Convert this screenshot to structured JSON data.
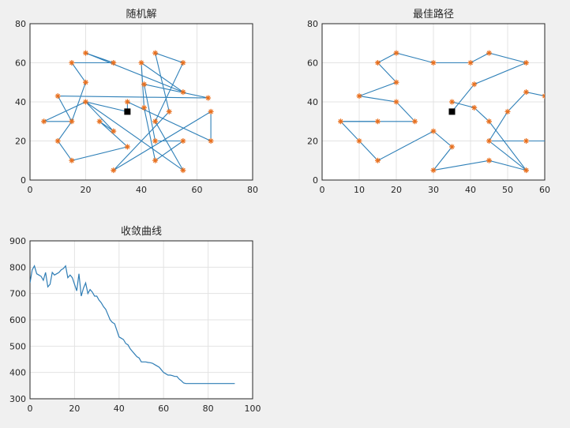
{
  "window": {
    "background": "#f0f0f0"
  },
  "colors": {
    "route": "#2f80b8",
    "city": "#e8701f",
    "depot": "#000000",
    "convergence": "#2f7db5",
    "grid": "#e3e3e3"
  },
  "chart_data": [
    {
      "type": "line",
      "title": "随机解",
      "xlim": [
        0,
        80
      ],
      "ylim": [
        0,
        80
      ],
      "xticks": [
        "0",
        "20",
        "40",
        "60",
        "80"
      ],
      "yticks": [
        "0",
        "20",
        "40",
        "60",
        "80"
      ],
      "grid": true,
      "depot": [
        35,
        35
      ],
      "cities": [
        [
          20,
          65
        ],
        [
          30,
          60
        ],
        [
          40,
          60
        ],
        [
          45,
          65
        ],
        [
          55,
          60
        ],
        [
          15,
          60
        ],
        [
          20,
          50
        ],
        [
          41,
          49
        ],
        [
          10,
          43
        ],
        [
          20,
          40
        ],
        [
          15,
          30
        ],
        [
          5,
          30
        ],
        [
          25,
          30
        ],
        [
          30,
          25
        ],
        [
          10,
          20
        ],
        [
          15,
          10
        ],
        [
          35,
          17
        ],
        [
          30,
          5
        ],
        [
          45,
          10
        ],
        [
          55,
          5
        ],
        [
          55,
          20
        ],
        [
          65,
          20
        ],
        [
          45,
          20
        ],
        [
          41,
          37
        ],
        [
          50,
          35
        ],
        [
          45,
          30
        ],
        [
          35,
          40
        ],
        [
          55,
          45
        ],
        [
          64,
          42
        ],
        [
          65,
          35
        ]
      ],
      "route": [
        [
          35,
          35
        ],
        [
          20,
          40
        ],
        [
          5,
          30
        ],
        [
          15,
          30
        ],
        [
          20,
          50
        ],
        [
          15,
          60
        ],
        [
          30,
          60
        ],
        [
          20,
          65
        ],
        [
          55,
          45
        ],
        [
          40,
          60
        ],
        [
          41,
          37
        ],
        [
          45,
          10
        ],
        [
          55,
          20
        ],
        [
          45,
          20
        ],
        [
          41,
          49
        ],
        [
          64,
          42
        ],
        [
          10,
          43
        ],
        [
          15,
          30
        ],
        [
          10,
          20
        ],
        [
          15,
          10
        ],
        [
          35,
          17
        ],
        [
          25,
          30
        ],
        [
          30,
          25
        ],
        [
          20,
          40
        ],
        [
          55,
          5
        ],
        [
          45,
          30
        ],
        [
          55,
          60
        ],
        [
          45,
          65
        ],
        [
          50,
          35
        ],
        [
          30,
          5
        ],
        [
          65,
          35
        ],
        [
          65,
          20
        ],
        [
          35,
          40
        ],
        [
          35,
          35
        ]
      ]
    },
    {
      "type": "line",
      "title": "最佳路径",
      "xlim": [
        0,
        60
      ],
      "ylim": [
        0,
        80
      ],
      "xticks": [
        "0",
        "10",
        "20",
        "30",
        "40",
        "50",
        "60"
      ],
      "yticks": [
        "0",
        "20",
        "40",
        "60",
        "80"
      ],
      "grid": true,
      "depot": [
        35,
        35
      ],
      "cities": [
        [
          15,
          60
        ],
        [
          20,
          65
        ],
        [
          30,
          60
        ],
        [
          40,
          60
        ],
        [
          45,
          65
        ],
        [
          55,
          60
        ],
        [
          20,
          50
        ],
        [
          41,
          49
        ],
        [
          10,
          43
        ],
        [
          20,
          40
        ],
        [
          5,
          30
        ],
        [
          15,
          30
        ],
        [
          25,
          30
        ],
        [
          10,
          20
        ],
        [
          15,
          10
        ],
        [
          30,
          25
        ],
        [
          35,
          17
        ],
        [
          30,
          5
        ],
        [
          45,
          10
        ],
        [
          55,
          5
        ],
        [
          55,
          20
        ],
        [
          45,
          20
        ],
        [
          45,
          30
        ],
        [
          41,
          37
        ],
        [
          35,
          40
        ],
        [
          50,
          35
        ],
        [
          55,
          45
        ],
        [
          60,
          43
        ]
      ],
      "route": [
        [
          35,
          35
        ],
        [
          41,
          49
        ],
        [
          55,
          60
        ],
        [
          45,
          65
        ],
        [
          40,
          60
        ],
        [
          30,
          60
        ],
        [
          20,
          65
        ],
        [
          15,
          60
        ],
        [
          20,
          50
        ],
        [
          10,
          43
        ],
        [
          20,
          40
        ],
        [
          25,
          30
        ],
        [
          5,
          30
        ],
        [
          10,
          20
        ],
        [
          15,
          10
        ],
        [
          30,
          25
        ],
        [
          35,
          17
        ],
        [
          30,
          5
        ],
        [
          45,
          10
        ],
        [
          55,
          5
        ],
        [
          45,
          30
        ],
        [
          41,
          37
        ],
        [
          35,
          40
        ]
      ],
      "route2": [
        [
          55,
          5
        ],
        [
          45,
          20
        ],
        [
          50,
          35
        ],
        [
          55,
          45
        ],
        [
          60,
          43
        ]
      ],
      "route3": [
        [
          45,
          20
        ],
        [
          55,
          20
        ],
        [
          60,
          20
        ]
      ],
      "route4": [
        [
          5,
          30
        ],
        [
          15,
          30
        ]
      ]
    },
    {
      "type": "line",
      "title": "收敛曲线",
      "xlim": [
        0,
        100
      ],
      "ylim": [
        300,
        900
      ],
      "xticks": [
        "0",
        "20",
        "40",
        "60",
        "80",
        "100"
      ],
      "yticks": [
        "300",
        "400",
        "500",
        "600",
        "700",
        "800",
        "900"
      ],
      "grid": true,
      "series": [
        {
          "x": [
            0,
            1,
            2,
            3,
            4,
            5,
            6,
            7,
            8,
            9,
            10,
            11,
            12,
            13,
            14,
            15,
            16,
            17,
            18,
            19,
            20,
            21,
            22,
            23,
            24,
            25,
            26,
            27,
            28,
            29,
            30,
            31,
            32,
            33,
            34,
            35,
            36,
            37,
            38,
            39,
            40,
            41,
            42,
            43,
            44,
            45,
            46,
            47,
            48,
            49,
            50,
            51,
            52,
            53,
            54,
            55,
            56,
            57,
            58,
            59,
            60,
            61,
            62,
            63,
            64,
            65,
            66,
            67,
            68,
            69,
            70,
            71,
            72,
            73,
            74,
            75,
            76,
            77,
            78,
            79,
            80,
            81,
            82,
            83,
            84,
            85,
            86,
            87,
            88,
            89,
            90,
            91,
            92
          ],
          "y": [
            740,
            790,
            805,
            775,
            770,
            765,
            750,
            780,
            725,
            735,
            780,
            770,
            775,
            780,
            790,
            795,
            805,
            760,
            770,
            760,
            735,
            710,
            775,
            690,
            720,
            740,
            700,
            715,
            705,
            690,
            690,
            675,
            665,
            650,
            640,
            620,
            600,
            590,
            585,
            560,
            535,
            530,
            525,
            510,
            505,
            490,
            480,
            470,
            460,
            455,
            440,
            440,
            440,
            438,
            437,
            435,
            430,
            425,
            420,
            410,
            400,
            395,
            390,
            390,
            388,
            385,
            385,
            375,
            368,
            360,
            358,
            358,
            358,
            358,
            358,
            358,
            358,
            358,
            358,
            358,
            358,
            358,
            358,
            358,
            358,
            358,
            358,
            358,
            358,
            358,
            358,
            358,
            358
          ]
        }
      ]
    }
  ]
}
